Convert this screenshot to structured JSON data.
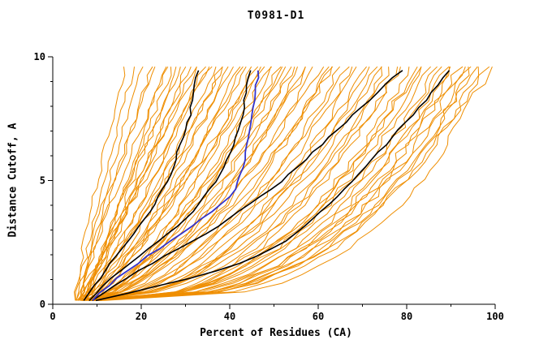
{
  "chart_data": {
    "type": "line",
    "title": "T0981-D1",
    "xlabel": "Percent of Residues (CA)",
    "ylabel": "Distance Cutoff, A",
    "xlim": [
      0,
      100
    ],
    "ylim": [
      0,
      10
    ],
    "x_ticks": [
      0,
      20,
      40,
      60,
      80,
      100
    ],
    "y_ticks": [
      0,
      5,
      10
    ],
    "x_minor_step": 10,
    "y_minor_step": 1,
    "grid": false,
    "legend": "none",
    "curve_y_start": 0.15,
    "curve_y_end": 9.65,
    "colors": {
      "model_curves": "#ef8e00",
      "reference_curves": "#000000",
      "highlight_curve": "#3333cc",
      "axis": "#000000"
    },
    "orange_model_curves": [
      [
        5,
        17,
        1.2
      ],
      [
        5.5,
        19,
        1.1
      ],
      [
        6,
        21,
        1.15
      ],
      [
        6,
        23,
        1.0
      ],
      [
        6.5,
        24,
        1.25
      ],
      [
        7,
        26,
        0.95
      ],
      [
        5,
        27,
        1.1
      ],
      [
        7.5,
        28,
        1.05
      ],
      [
        6,
        29,
        0.9
      ],
      [
        8,
        30,
        1.2
      ],
      [
        5.5,
        31,
        0.85
      ],
      [
        7,
        32,
        1.0
      ],
      [
        6.5,
        33,
        0.95
      ],
      [
        8.5,
        34,
        1.1
      ],
      [
        6,
        35,
        0.8
      ],
      [
        7.5,
        36,
        0.9
      ],
      [
        5,
        37,
        1.0
      ],
      [
        8,
        38,
        0.85
      ],
      [
        6.5,
        39,
        0.75
      ],
      [
        7,
        40,
        0.9
      ],
      [
        9,
        41,
        0.8
      ],
      [
        6,
        42,
        0.85
      ],
      [
        7.5,
        43,
        0.7
      ],
      [
        8,
        44,
        0.75
      ],
      [
        6.5,
        45,
        0.8
      ],
      [
        9,
        46,
        0.65
      ],
      [
        7,
        47,
        0.75
      ],
      [
        8.5,
        48,
        0.7
      ],
      [
        6,
        49,
        0.8
      ],
      [
        7.5,
        50,
        0.65
      ],
      [
        9.5,
        51,
        0.7
      ],
      [
        7,
        52,
        0.6
      ],
      [
        8,
        53,
        0.7
      ],
      [
        6.5,
        54,
        0.65
      ],
      [
        9,
        55,
        0.6
      ],
      [
        7.5,
        56,
        0.65
      ],
      [
        8.5,
        57,
        0.55
      ],
      [
        7,
        58,
        0.6
      ],
      [
        9.5,
        59,
        0.65
      ],
      [
        8,
        60,
        0.55
      ],
      [
        7.5,
        62,
        0.6
      ],
      [
        9,
        63,
        0.5
      ],
      [
        8.5,
        64,
        0.55
      ],
      [
        7,
        65,
        0.6
      ],
      [
        9.5,
        66,
        0.5
      ],
      [
        8,
        68,
        0.55
      ],
      [
        7.5,
        69,
        0.5
      ],
      [
        9,
        70,
        0.45
      ],
      [
        8.5,
        72,
        0.5
      ],
      [
        7,
        73,
        0.45
      ],
      [
        10,
        74,
        0.5
      ],
      [
        8,
        75,
        0.45
      ],
      [
        9.5,
        76,
        0.4
      ],
      [
        7.5,
        78,
        0.45
      ],
      [
        9,
        79,
        0.4
      ],
      [
        8.5,
        80,
        0.45
      ],
      [
        10,
        82,
        0.4
      ],
      [
        8,
        83,
        0.38
      ],
      [
        9.5,
        84,
        0.42
      ],
      [
        7.5,
        85,
        0.38
      ],
      [
        10.5,
        86,
        0.4
      ],
      [
        9,
        88,
        0.36
      ],
      [
        8.5,
        89,
        0.4
      ],
      [
        10,
        90,
        0.35
      ],
      [
        9.5,
        91,
        0.38
      ],
      [
        8,
        92,
        0.35
      ],
      [
        11,
        93,
        0.37
      ],
      [
        9,
        94,
        0.34
      ],
      [
        10.5,
        95,
        0.36
      ],
      [
        9.5,
        96,
        0.33
      ],
      [
        11,
        97,
        0.35
      ],
      [
        10,
        98,
        0.32
      ],
      [
        9,
        99,
        0.34
      ],
      [
        11.5,
        100,
        0.3
      ]
    ],
    "black_reference_curves": [
      [
        [
          0.15,
          7
        ],
        [
          0.5,
          8.5
        ],
        [
          1,
          10.5
        ],
        [
          1.5,
          12.5
        ],
        [
          2,
          14.5
        ],
        [
          2.5,
          17
        ],
        [
          3,
          19
        ],
        [
          3.5,
          21
        ],
        [
          4,
          23
        ],
        [
          4.5,
          24.5
        ],
        [
          5,
          26
        ],
        [
          5.5,
          27
        ],
        [
          6,
          28
        ],
        [
          6.5,
          29
        ],
        [
          7,
          30
        ],
        [
          7.5,
          30.8
        ],
        [
          8,
          31.3
        ],
        [
          8.5,
          31.8
        ],
        [
          9,
          32.3
        ],
        [
          9.65,
          33
        ]
      ],
      [
        [
          0.15,
          8
        ],
        [
          0.5,
          10
        ],
        [
          1,
          13
        ],
        [
          1.5,
          16.5
        ],
        [
          2,
          20
        ],
        [
          2.5,
          23.5
        ],
        [
          3,
          27
        ],
        [
          3.5,
          30
        ],
        [
          4,
          33
        ],
        [
          4.5,
          35
        ],
        [
          5,
          37
        ],
        [
          5.5,
          38.5
        ],
        [
          6,
          40
        ],
        [
          6.5,
          41
        ],
        [
          7,
          42
        ],
        [
          7.5,
          42.7
        ],
        [
          8,
          43.2
        ],
        [
          8.5,
          43.7
        ],
        [
          9,
          44.2
        ],
        [
          9.65,
          45
        ]
      ],
      [
        [
          0.15,
          9
        ],
        [
          0.5,
          12
        ],
        [
          1,
          16
        ],
        [
          1.5,
          21
        ],
        [
          2,
          26
        ],
        [
          2.5,
          31
        ],
        [
          3,
          36
        ],
        [
          3.5,
          40
        ],
        [
          4,
          44
        ],
        [
          4.5,
          48
        ],
        [
          5,
          52
        ],
        [
          5.5,
          55
        ],
        [
          6,
          58
        ],
        [
          6.5,
          61
        ],
        [
          7,
          64
        ],
        [
          7.5,
          67
        ],
        [
          8,
          70
        ],
        [
          8.5,
          73
        ],
        [
          9,
          76
        ],
        [
          9.65,
          80
        ]
      ],
      [
        [
          0.15,
          10
        ],
        [
          0.5,
          18
        ],
        [
          1,
          30
        ],
        [
          1.5,
          40
        ],
        [
          2,
          47
        ],
        [
          2.5,
          52
        ],
        [
          3,
          56
        ],
        [
          3.5,
          59
        ],
        [
          4,
          62
        ],
        [
          4.5,
          65
        ],
        [
          5,
          68
        ],
        [
          5.5,
          70.5
        ],
        [
          6,
          73
        ],
        [
          6.5,
          75.5
        ],
        [
          7,
          78
        ],
        [
          7.5,
          80.5
        ],
        [
          8,
          83
        ],
        [
          8.5,
          85.5
        ],
        [
          9,
          88
        ],
        [
          9.65,
          90
        ]
      ]
    ],
    "blue_highlight_curve": [
      [
        0.15,
        9
      ],
      [
        0.5,
        11
      ],
      [
        1,
        14
      ],
      [
        1.5,
        18
      ],
      [
        2,
        22
      ],
      [
        2.5,
        26
      ],
      [
        3,
        30
      ],
      [
        3.5,
        34
      ],
      [
        4,
        38
      ],
      [
        4.5,
        41
      ],
      [
        5,
        42
      ],
      [
        5.5,
        42.8
      ],
      [
        6,
        43.5
      ],
      [
        6.5,
        44
      ],
      [
        7,
        44.5
      ],
      [
        7.5,
        45
      ],
      [
        8,
        45.5
      ],
      [
        8.5,
        45.8
      ],
      [
        9,
        46.2
      ],
      [
        9.65,
        46.8
      ]
    ]
  }
}
